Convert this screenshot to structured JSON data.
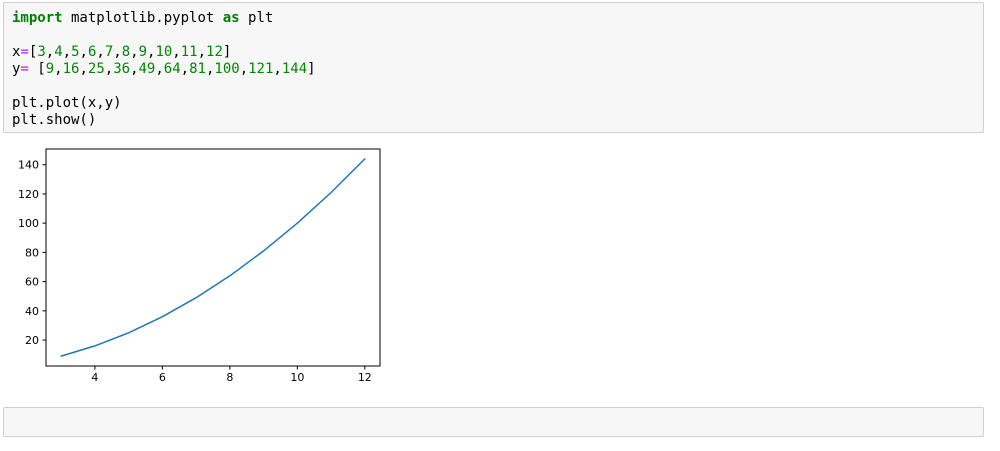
{
  "notebook": {
    "code_cell": {
      "source": "import matplotlib.pyplot as plt\n\nx=[3,4,5,6,7,8,9,10,11,12]\ny= [9,16,25,36,49,64,81,100,121,144]\n\nplt.plot(x,y)\nplt.show()",
      "keywords": [
        "import",
        "as"
      ]
    },
    "empty_cell": {
      "source": ""
    }
  },
  "chart_data": {
    "type": "line",
    "x": [
      3,
      4,
      5,
      6,
      7,
      8,
      9,
      10,
      11,
      12
    ],
    "y": [
      9,
      16,
      25,
      36,
      49,
      64,
      81,
      100,
      121,
      144
    ],
    "xticks": [
      4,
      6,
      8,
      10,
      12
    ],
    "yticks": [
      20,
      40,
      60,
      80,
      100,
      120,
      140
    ],
    "xlim": [
      2.55,
      12.45
    ],
    "ylim": [
      2.25,
      150.75
    ],
    "title": "",
    "xlabel": "",
    "ylabel": "",
    "grid": false,
    "legend": false,
    "line_color": "#1f77b4"
  },
  "colors": {
    "cell_background": "#f7f7f7",
    "cell_border": "#cfcfcf",
    "keyword": "#008000",
    "number": "#008800",
    "operator": "#aa22ff",
    "text": "#000000",
    "line": "#1f77b4"
  }
}
